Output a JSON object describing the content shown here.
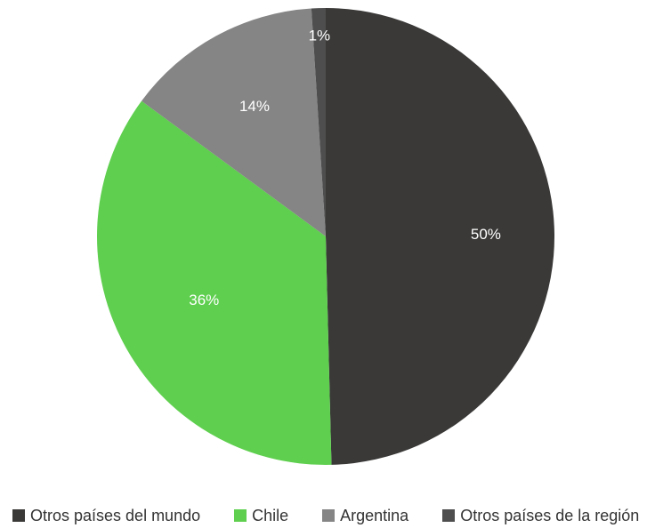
{
  "chart_data": {
    "type": "pie",
    "slices": [
      {
        "name": "Otros países del mundo",
        "value": 49.6,
        "label": "50%",
        "color": "#3a3938"
      },
      {
        "name": "Chile",
        "value": 35.5,
        "label": "36%",
        "color": "#5ecf4e"
      },
      {
        "name": "Argentina",
        "value": 13.9,
        "label": "14%",
        "color": "#858585"
      },
      {
        "name": "Otros países de la región",
        "value": 1.0,
        "label": "1%",
        "color": "#4e4e4e"
      }
    ],
    "legend_position": "bottom",
    "start": "top",
    "direction": "clockwise"
  }
}
